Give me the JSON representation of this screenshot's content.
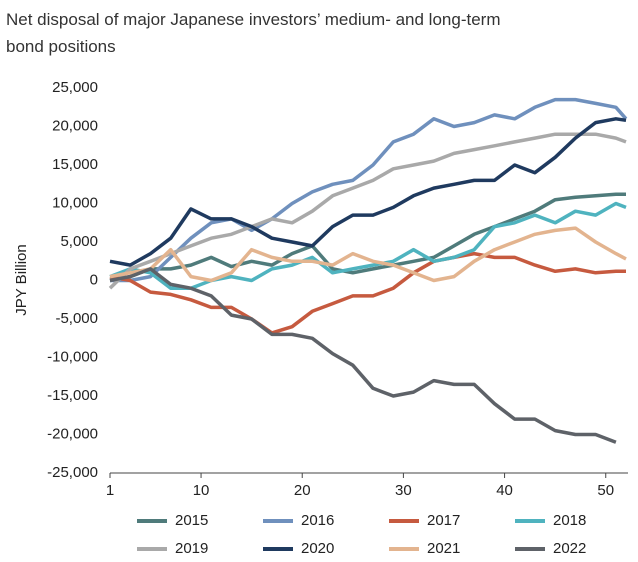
{
  "chart_data": {
    "type": "line",
    "title": "Net disposal of major Japanese investors’ medium- and long-term bond positions",
    "y_label": "JPY Billion",
    "x": [
      1,
      3,
      5,
      7,
      9,
      11,
      13,
      15,
      17,
      19,
      21,
      23,
      25,
      27,
      29,
      31,
      33,
      35,
      37,
      39,
      41,
      43,
      45,
      47,
      49,
      51,
      52
    ],
    "xlim": [
      1,
      52.2
    ],
    "xticks": [
      1,
      10,
      20,
      30,
      40,
      50
    ],
    "ylim": [
      -25000,
      25000
    ],
    "yticks": [
      {
        "value": -25000,
        "label": "-25,000"
      },
      {
        "value": -20000,
        "label": "-20,000"
      },
      {
        "value": -15000,
        "label": "-15,000"
      },
      {
        "value": -10000,
        "label": "-10,000"
      },
      {
        "value": -5000,
        "label": "-5,000"
      },
      0,
      {
        "value": 5000,
        "label": "5,000"
      },
      {
        "value": 10000,
        "label": "10,000"
      },
      {
        "value": 15000,
        "label": "15,000"
      },
      {
        "value": 20000,
        "label": "20,000"
      },
      {
        "value": 25000,
        "label": "25,000"
      }
    ],
    "series": [
      {
        "name": "2015",
        "color": "#4f7b7b",
        "values": [
          0,
          500,
          1500,
          1500,
          2000,
          3000,
          1800,
          2500,
          2000,
          3500,
          4500,
          1500,
          1000,
          1500,
          2000,
          2500,
          3000,
          4500,
          6000,
          7000,
          8000,
          9000,
          10500,
          10800,
          11000,
          11200,
          11200
        ]
      },
      {
        "name": "2016",
        "color": "#6f90bd",
        "values": [
          0,
          0,
          500,
          3000,
          5500,
          7500,
          8000,
          6500,
          8000,
          10000,
          11500,
          12500,
          13000,
          15000,
          18000,
          19000,
          21000,
          20000,
          20500,
          21500,
          21000,
          22500,
          23500,
          23500,
          23000,
          22500,
          21000
        ]
      },
      {
        "name": "2017",
        "color": "#c65a3f",
        "values": [
          500,
          0,
          -1500,
          -1800,
          -2500,
          -3500,
          -3500,
          -5000,
          -6800,
          -6000,
          -4000,
          -3000,
          -2000,
          -2000,
          -1000,
          1000,
          2500,
          3000,
          3500,
          3000,
          3000,
          2000,
          1200,
          1500,
          1000,
          1200,
          1200
        ]
      },
      {
        "name": "2018",
        "color": "#4fb3bf",
        "values": [
          500,
          1500,
          1000,
          -1000,
          -1000,
          0,
          500,
          0,
          1500,
          2000,
          3000,
          1000,
          1500,
          2000,
          2500,
          4000,
          2500,
          3000,
          4000,
          7000,
          7500,
          8500,
          7500,
          9000,
          8500,
          10000,
          9500
        ]
      },
      {
        "name": "2019",
        "color": "#a9a9a9",
        "values": [
          -1000,
          1500,
          2500,
          3500,
          4500,
          5500,
          6000,
          7000,
          8000,
          7500,
          9000,
          11000,
          12000,
          13000,
          14500,
          15000,
          15500,
          16500,
          17000,
          17500,
          18000,
          18500,
          19000,
          19000,
          19000,
          18500,
          18000
        ]
      },
      {
        "name": "2020",
        "color": "#1f3a5f",
        "values": [
          2500,
          2000,
          3500,
          5500,
          9300,
          8000,
          8000,
          7000,
          5500,
          5000,
          4500,
          7000,
          8500,
          8500,
          9500,
          11000,
          12000,
          12500,
          13000,
          13000,
          15000,
          14000,
          16000,
          18500,
          20500,
          21000,
          20800
        ]
      },
      {
        "name": "2021",
        "color": "#e3b48f",
        "values": [
          500,
          1000,
          1500,
          4000,
          500,
          0,
          1000,
          4000,
          3000,
          2500,
          2500,
          2000,
          3500,
          2500,
          2000,
          1000,
          0,
          500,
          2500,
          4000,
          5000,
          6000,
          6500,
          6800,
          5000,
          3500,
          2800
        ]
      },
      {
        "name": "2022",
        "color": "#5e6268",
        "values": [
          0,
          500,
          1500,
          -500,
          -1000,
          -2000,
          -4500,
          -5000,
          -7000,
          -7000,
          -7500,
          -9500,
          -11000,
          -14000,
          -15000,
          -14500,
          -13000,
          -13500,
          -13500,
          -16000,
          -18000,
          -18000,
          -19500,
          -20000,
          -20000,
          -21000,
          null
        ]
      }
    ]
  }
}
